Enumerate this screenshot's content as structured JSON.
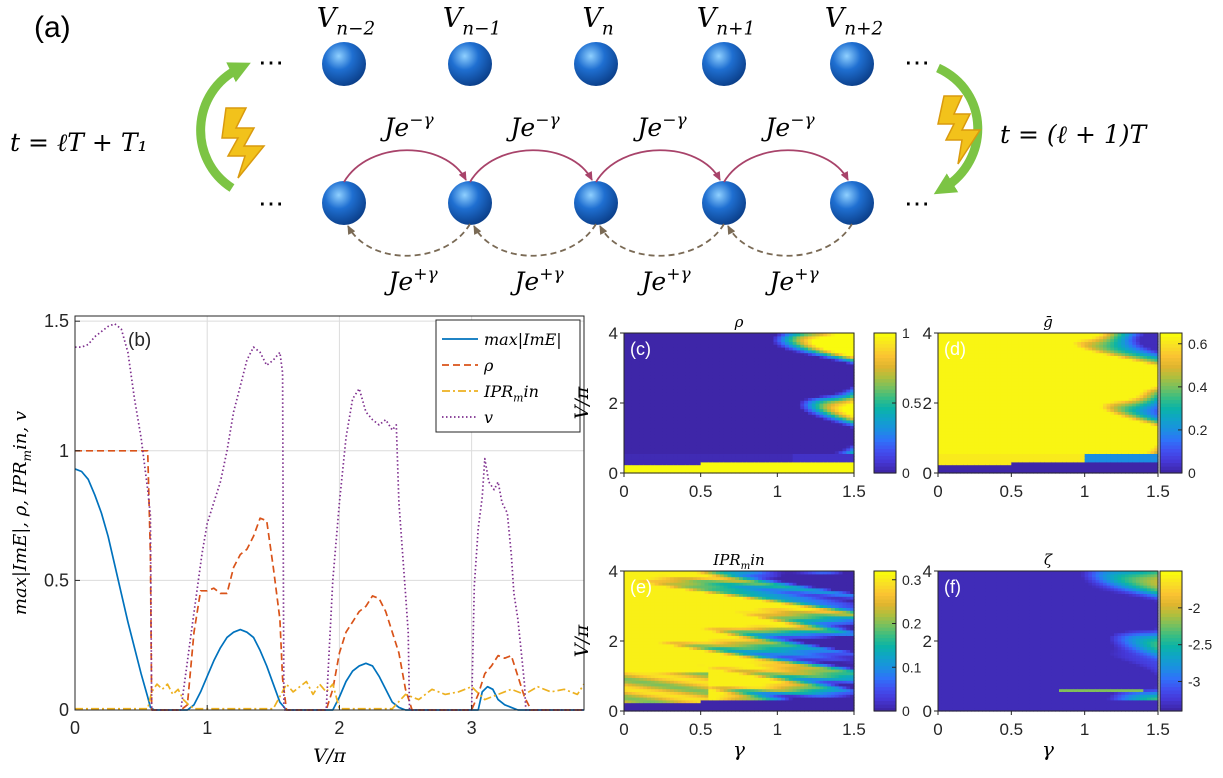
{
  "panel_a": {
    "label": "(a)",
    "sites": [
      "V_{n−2}",
      "V_{n−1}",
      "V_n",
      "V_{n+1}",
      "V_{n+2}"
    ],
    "ellipsis": "⋯",
    "forward_hop": "Je^{−γ}",
    "backward_hop": "Je^{+γ}",
    "time_left": "t = ℓT + T₁",
    "time_right": "t = (ℓ + 1)T",
    "colors": {
      "site": "#1f6fd1",
      "forward_arrow": "#a8436a",
      "backward_arrow": "#7a6a55",
      "switch_arrow": "#7cc444",
      "bolt": "#f2c21b"
    }
  },
  "chart_data": [
    {
      "panel": "(b)",
      "type": "line",
      "xlabel": "V/π",
      "ylabel": "max|ImE|, ρ, IPR_min, v",
      "xlim": [
        0,
        3.85
      ],
      "ylim": [
        0,
        1.52
      ],
      "xticks": [
        0,
        1,
        2,
        3
      ],
      "yticks": [
        0,
        0.5,
        1,
        1.5
      ],
      "grid": true,
      "legend": "top-right",
      "series": [
        {
          "name": "max|ImE|",
          "color": "#0072bd",
          "style": "solid",
          "x": [
            0,
            0.05,
            0.1,
            0.15,
            0.2,
            0.25,
            0.3,
            0.35,
            0.4,
            0.45,
            0.5,
            0.55,
            0.57,
            0.6,
            0.85,
            0.9,
            0.95,
            1.0,
            1.05,
            1.1,
            1.15,
            1.2,
            1.25,
            1.3,
            1.35,
            1.4,
            1.45,
            1.5,
            1.55,
            1.6,
            1.95,
            2.0,
            2.05,
            2.1,
            2.15,
            2.2,
            2.25,
            2.3,
            2.35,
            2.4,
            2.45,
            2.5,
            3.05,
            3.08,
            3.12,
            3.16,
            3.2,
            3.25,
            3.3,
            3.35,
            3.85
          ],
          "y": [
            0.93,
            0.92,
            0.89,
            0.83,
            0.76,
            0.67,
            0.56,
            0.45,
            0.34,
            0.24,
            0.14,
            0.05,
            0.01,
            0.0,
            0.0,
            0.02,
            0.07,
            0.13,
            0.19,
            0.24,
            0.28,
            0.3,
            0.31,
            0.3,
            0.28,
            0.23,
            0.17,
            0.1,
            0.03,
            0.0,
            0.0,
            0.05,
            0.11,
            0.15,
            0.17,
            0.18,
            0.17,
            0.13,
            0.08,
            0.03,
            0.01,
            0.0,
            0.0,
            0.07,
            0.09,
            0.08,
            0.04,
            0.02,
            0.01,
            0.0,
            0.0
          ]
        },
        {
          "name": "ρ",
          "color": "#d95319",
          "style": "dashed",
          "x": [
            0,
            0.5,
            0.55,
            0.57,
            0.58,
            0.8,
            0.85,
            0.9,
            0.95,
            1.0,
            1.05,
            1.1,
            1.15,
            1.2,
            1.25,
            1.3,
            1.35,
            1.4,
            1.45,
            1.5,
            1.55,
            1.57,
            1.6,
            1.9,
            1.95,
            2.0,
            2.05,
            2.1,
            2.15,
            2.2,
            2.25,
            2.3,
            2.35,
            2.4,
            2.45,
            2.5,
            2.55,
            3.0,
            3.05,
            3.1,
            3.15,
            3.2,
            3.25,
            3.3,
            3.35,
            3.4,
            3.45,
            3.85
          ],
          "y": [
            1.0,
            1.0,
            1.0,
            0.6,
            0.0,
            0.0,
            0.02,
            0.3,
            0.46,
            0.46,
            0.47,
            0.45,
            0.45,
            0.55,
            0.6,
            0.62,
            0.67,
            0.74,
            0.73,
            0.55,
            0.35,
            0.12,
            0.0,
            0.0,
            0.08,
            0.22,
            0.3,
            0.34,
            0.38,
            0.4,
            0.44,
            0.43,
            0.38,
            0.3,
            0.22,
            0.08,
            0.0,
            0.0,
            0.06,
            0.14,
            0.17,
            0.21,
            0.2,
            0.21,
            0.13,
            0.05,
            0.0,
            0.0
          ]
        },
        {
          "name": "IPR_min",
          "color": "#edb120",
          "style": "dashdot",
          "x": [
            0,
            0.55,
            0.58,
            0.62,
            0.66,
            0.7,
            0.74,
            0.78,
            0.82,
            0.86,
            0.9,
            1.0,
            1.5,
            1.6,
            1.65,
            1.7,
            1.75,
            1.8,
            1.85,
            1.9,
            1.95,
            2.0,
            2.4,
            2.5,
            2.6,
            2.7,
            2.8,
            2.9,
            3.0,
            3.1,
            3.2,
            3.3,
            3.4,
            3.5,
            3.6,
            3.7,
            3.8,
            3.85
          ],
          "y": [
            0.005,
            0.005,
            0.07,
            0.1,
            0.08,
            0.1,
            0.06,
            0.08,
            0.04,
            0.02,
            0.005,
            0.005,
            0.005,
            0.1,
            0.07,
            0.09,
            0.11,
            0.06,
            0.1,
            0.07,
            0.1,
            0.005,
            0.005,
            0.06,
            0.04,
            0.08,
            0.06,
            0.07,
            0.09,
            0.04,
            0.06,
            0.08,
            0.06,
            0.09,
            0.07,
            0.08,
            0.06,
            0.1
          ]
        },
        {
          "name": "v",
          "color": "#7e2f8e",
          "style": "dotted",
          "x": [
            0,
            0.05,
            0.1,
            0.15,
            0.2,
            0.25,
            0.3,
            0.35,
            0.4,
            0.45,
            0.5,
            0.55,
            0.57,
            0.58,
            0.8,
            0.84,
            0.88,
            0.92,
            0.96,
            1.0,
            1.05,
            1.1,
            1.15,
            1.2,
            1.25,
            1.3,
            1.35,
            1.4,
            1.45,
            1.5,
            1.55,
            1.57,
            1.58,
            1.9,
            1.92,
            1.95,
            2.0,
            2.05,
            2.1,
            2.15,
            2.2,
            2.25,
            2.3,
            2.35,
            2.4,
            2.43,
            2.45,
            2.5,
            2.52,
            2.53,
            3.0,
            3.02,
            3.05,
            3.08,
            3.1,
            3.13,
            3.17,
            3.2,
            3.23,
            3.27,
            3.3,
            3.32,
            3.35,
            3.38,
            3.4,
            3.41,
            3.85
          ],
          "y": [
            1.4,
            1.4,
            1.41,
            1.44,
            1.46,
            1.48,
            1.49,
            1.47,
            1.38,
            1.2,
            1.05,
            0.85,
            0.75,
            0.0,
            0.0,
            0.15,
            0.3,
            0.45,
            0.6,
            0.72,
            0.8,
            0.88,
            1.0,
            1.15,
            1.25,
            1.35,
            1.4,
            1.38,
            1.33,
            1.35,
            1.38,
            1.3,
            0.0,
            0.0,
            0.2,
            0.5,
            0.8,
            1.05,
            1.2,
            1.24,
            1.15,
            1.12,
            1.1,
            1.12,
            1.08,
            1.1,
            0.8,
            0.45,
            0.3,
            0.0,
            0.0,
            0.48,
            0.7,
            0.82,
            0.97,
            0.88,
            0.85,
            0.88,
            0.8,
            0.76,
            0.6,
            0.45,
            0.35,
            0.2,
            0.1,
            0.0,
            0.0
          ]
        }
      ]
    },
    {
      "panel": "(c)",
      "type": "heatmap",
      "title": "ρ",
      "xlabel": "",
      "ylabel": "V/π",
      "xlim": [
        0,
        1.5
      ],
      "ylim": [
        0,
        4
      ],
      "xticks": [
        0,
        0.5,
        1,
        1.5
      ],
      "yticks": [
        0,
        2,
        4
      ],
      "colorbar": {
        "ticks": [
          "0",
          "0.5",
          "1"
        ],
        "range": [
          0,
          1
        ]
      }
    },
    {
      "panel": "(d)",
      "type": "heatmap",
      "title": "ḡ",
      "xlabel": "",
      "ylabel": "",
      "xlim": [
        0,
        1.5
      ],
      "ylim": [
        0,
        4
      ],
      "xticks": [
        0,
        0.5,
        1,
        1.5
      ],
      "yticks": [
        0,
        2,
        4
      ],
      "colorbar": {
        "ticks": [
          "0",
          "0.2",
          "0.4",
          "0.6"
        ],
        "range": [
          0,
          0.65
        ]
      }
    },
    {
      "panel": "(e)",
      "type": "heatmap",
      "title": "IPR_min",
      "xlabel": "γ",
      "ylabel": "V/π",
      "xlim": [
        0,
        1.5
      ],
      "ylim": [
        0,
        4
      ],
      "xticks": [
        0,
        0.5,
        1,
        1.5
      ],
      "yticks": [
        0,
        2,
        4
      ],
      "colorbar": {
        "ticks": [
          "0",
          "0.1",
          "0.2",
          "0.3"
        ],
        "range": [
          0,
          0.32
        ]
      }
    },
    {
      "panel": "(f)",
      "type": "heatmap",
      "title": "ζ",
      "xlabel": "γ",
      "ylabel": "",
      "xlim": [
        0,
        1.5
      ],
      "ylim": [
        0,
        4
      ],
      "xticks": [
        0,
        0.5,
        1,
        1.5
      ],
      "yticks": [
        0,
        2,
        4
      ],
      "colorbar": {
        "ticks": [
          "-2",
          "-2.5",
          "-3"
        ],
        "range": [
          -3.4,
          -1.5
        ]
      }
    }
  ],
  "colormap": [
    "#3e26a8",
    "#4538d7",
    "#4150f0",
    "#2f73f9",
    "#1b8fe1",
    "#10a3c9",
    "#0bb3a8",
    "#36bd84",
    "#75c060",
    "#aebf3e",
    "#dfb52f",
    "#fac332",
    "#f9df25",
    "#f9fb0e"
  ]
}
